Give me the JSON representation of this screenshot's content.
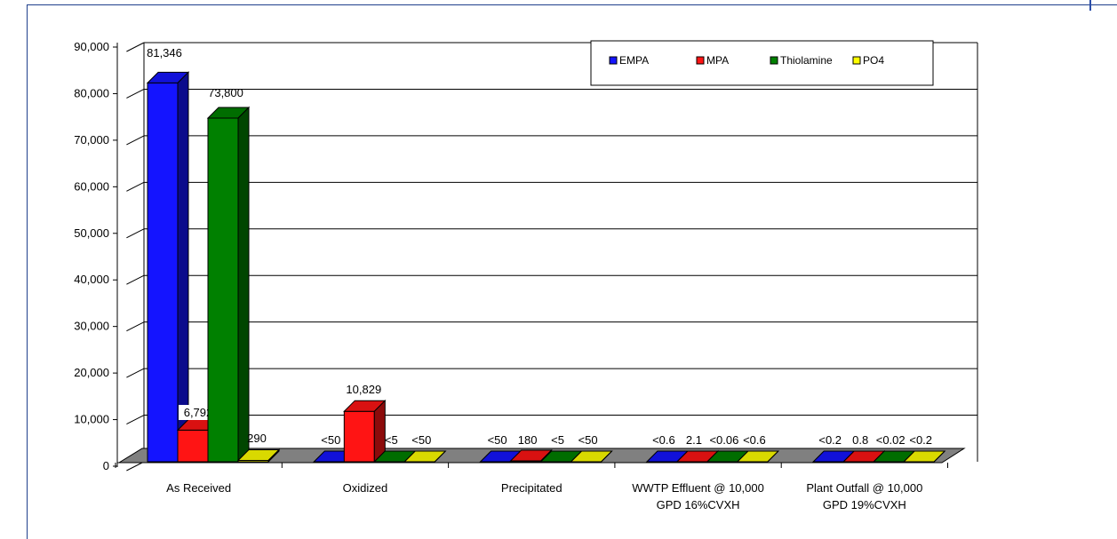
{
  "chart_data": {
    "type": "bar",
    "title": "",
    "xlabel": "",
    "ylabel": "",
    "ylim": [
      0,
      90000
    ],
    "yticks": [
      "0",
      "10,000",
      "20,000",
      "30,000",
      "40,000",
      "50,000",
      "60,000",
      "70,000",
      "80,000",
      "90,000"
    ],
    "grid": true,
    "legend_position": "top-right",
    "categories": [
      [
        "As Received"
      ],
      [
        "Oxidized"
      ],
      [
        "Precipitated"
      ],
      [
        "WWTP Effluent @ 10,000",
        "GPD 16%CVXH"
      ],
      [
        "Plant Outfall @ 10,000",
        "GPD 19%CVXH"
      ]
    ],
    "series": [
      {
        "name": "EMPA",
        "color": "#1414ff",
        "values": [
          81346,
          0,
          0,
          0,
          0
        ],
        "labels": [
          "81,346",
          "<50",
          "<50",
          "<0.6",
          "<0.2"
        ]
      },
      {
        "name": "MPA",
        "color": "#ff1414",
        "values": [
          6792,
          10829,
          180,
          2.1,
          0.8
        ],
        "labels": [
          "6,792",
          "10,829",
          "180",
          "2.1",
          "0.8"
        ]
      },
      {
        "name": "Thiolamine",
        "color": "#008000",
        "values": [
          73800,
          0,
          0,
          0,
          0
        ],
        "labels": [
          "73,800",
          "<5",
          "<5",
          "<0.06",
          "<0.02"
        ]
      },
      {
        "name": "PO4",
        "color": "#ffff00",
        "values": [
          290,
          0,
          0,
          0,
          0
        ],
        "labels": [
          "290",
          "<50",
          "<50",
          "<0.6",
          "<0.2"
        ]
      }
    ]
  }
}
